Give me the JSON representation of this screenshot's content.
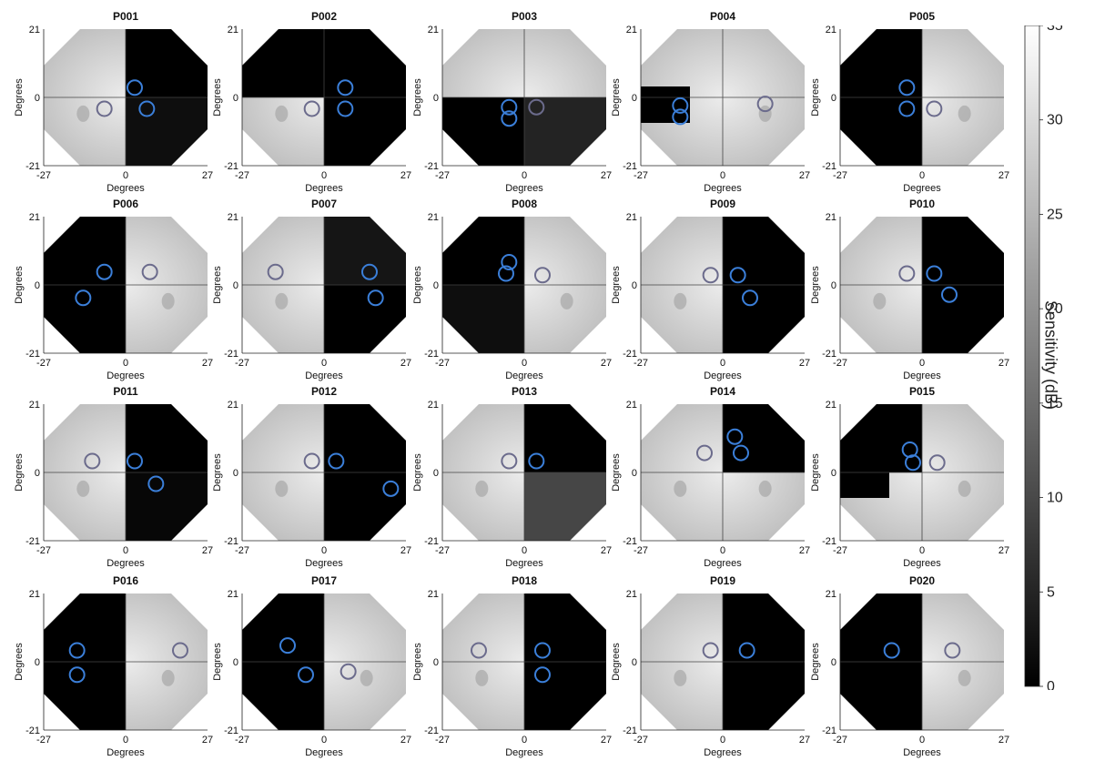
{
  "chart_data": {
    "type": "heatmap",
    "description_axes": {
      "xlabel": "Degrees",
      "ylabel": "Degrees",
      "xticks": [
        "-27",
        "0",
        "27"
      ],
      "yticks": [
        "21",
        "0",
        "-21"
      ],
      "xlim": [
        -27,
        27
      ],
      "ylim": [
        -21,
        21
      ]
    },
    "colorbar": {
      "label": "Sensitivity (dB)",
      "range": [
        0,
        35
      ],
      "ticks": [
        "0",
        "5",
        "10",
        "15",
        "20",
        "25",
        "30",
        "35"
      ],
      "colormap": "gray"
    },
    "panels": [
      {
        "title": "P001",
        "scotoma": [
          {
            "q": "UR",
            "v": 0
          },
          {
            "q": "LR",
            "v": 2
          }
        ],
        "pref": [
          3,
          -5
        ],
        "trl": [
          [
            3,
            3
          ],
          [
            7,
            -3.5
          ]
        ],
        "control": [
          [
            -7,
            -3.5
          ]
        ]
      },
      {
        "title": "P002",
        "scotoma": [
          {
            "q": "UL",
            "v": 0
          },
          {
            "q": "UR",
            "v": 0
          },
          {
            "q": "LR",
            "v": 0
          }
        ],
        "pref": [
          -1,
          -4
        ],
        "trl": [
          [
            7,
            3
          ],
          [
            7,
            -3.5
          ]
        ],
        "control": [
          [
            -4,
            -3.5
          ]
        ]
      },
      {
        "title": "P003",
        "scotoma": [
          {
            "q": "LL",
            "v": 0
          },
          {
            "q": "LR",
            "v": 5
          }
        ],
        "pref": [
          -2,
          -4
        ],
        "trl": [
          [
            -5,
            -3
          ],
          [
            -5,
            -6.5
          ]
        ],
        "control": [
          [
            4,
            -3
          ]
        ]
      },
      {
        "title": "P004",
        "scotoma": [
          {
            "q": "LL-part",
            "v": 0
          }
        ],
        "pref": [
          -16,
          -2
        ],
        "trl": [
          [
            -14,
            -2.5
          ],
          [
            -14,
            -6
          ]
        ],
        "control": [
          [
            14,
            -2
          ]
        ]
      },
      {
        "title": "P005",
        "scotoma": [
          {
            "q": "UL",
            "v": 0
          },
          {
            "q": "LL",
            "v": 0
          }
        ],
        "pref": [
          -4,
          -4
        ],
        "trl": [
          [
            -5,
            3
          ],
          [
            -5,
            -3.5
          ]
        ],
        "control": [
          [
            4,
            -3.5
          ]
        ]
      },
      {
        "title": "P006",
        "scotoma": [
          {
            "q": "UL",
            "v": 0
          },
          {
            "q": "LL",
            "v": 0
          }
        ],
        "pref": [
          0,
          -3
        ],
        "trl": [
          [
            -7,
            4
          ],
          [
            -14,
            -4
          ]
        ],
        "control": [
          [
            8,
            4
          ]
        ]
      },
      {
        "title": "P007",
        "scotoma": [
          {
            "q": "UR",
            "v": 3
          },
          {
            "q": "LR",
            "v": 0
          }
        ],
        "pref": [
          3,
          -3
        ],
        "trl": [
          [
            15,
            4
          ],
          [
            17,
            -4
          ]
        ],
        "control": [
          [
            -16,
            4
          ]
        ]
      },
      {
        "title": "P008",
        "scotoma": [
          {
            "q": "UL",
            "v": 0
          },
          {
            "q": "LL",
            "v": 2
          }
        ],
        "pref": [
          -2,
          -2
        ],
        "trl": [
          [
            -5,
            7
          ],
          [
            -6,
            3.5
          ]
        ],
        "control": [
          [
            6,
            3
          ]
        ]
      },
      {
        "title": "P009",
        "scotoma": [
          {
            "q": "UR",
            "v": 0
          },
          {
            "q": "LR",
            "v": 0
          }
        ],
        "pref": [
          1,
          -4
        ],
        "trl": [
          [
            5,
            3
          ],
          [
            9,
            -4
          ]
        ],
        "control": [
          [
            -4,
            3
          ]
        ]
      },
      {
        "title": "P010",
        "scotoma": [
          {
            "q": "UR",
            "v": 0
          },
          {
            "q": "LR",
            "v": 0
          }
        ],
        "pref": [
          0,
          -3
        ],
        "trl": [
          [
            4,
            3.5
          ],
          [
            9,
            -3
          ]
        ],
        "control": [
          [
            -5,
            3.5
          ]
        ]
      },
      {
        "title": "P011",
        "scotoma": [
          {
            "q": "UR",
            "v": 0
          },
          {
            "q": "LR",
            "v": 1
          }
        ],
        "pref": [
          3,
          -3
        ],
        "trl": [
          [
            3,
            3.5
          ],
          [
            10,
            -3.5
          ]
        ],
        "control": [
          [
            -11,
            3.5
          ]
        ]
      },
      {
        "title": "P012",
        "scotoma": [
          {
            "q": "UR",
            "v": 0
          },
          {
            "q": "LR",
            "v": 0
          }
        ],
        "pref": [
          2,
          -3
        ],
        "trl": [
          [
            4,
            3.5
          ],
          [
            22,
            -5
          ]
        ],
        "control": [
          [
            -4,
            3.5
          ]
        ]
      },
      {
        "title": "P013",
        "scotoma": [
          {
            "q": "UR",
            "v": 0
          },
          {
            "q": "LR",
            "v": 10
          }
        ],
        "pref": [
          2,
          -3
        ],
        "trl": [
          [
            4,
            3.5
          ]
        ],
        "control": [
          [
            -5,
            3.5
          ]
        ]
      },
      {
        "title": "P014",
        "scotoma": [
          {
            "q": "UR",
            "v": 0
          }
        ],
        "pref": [
          2,
          0
        ],
        "trl": [
          [
            4,
            11
          ],
          [
            6,
            6
          ]
        ],
        "control": [
          [
            -6,
            6
          ]
        ]
      },
      {
        "title": "P015",
        "scotoma": [
          {
            "q": "UL",
            "v": 0
          },
          {
            "q": "LL-part",
            "v": 0
          }
        ],
        "pref": [
          -2,
          -2
        ],
        "trl": [
          [
            -4,
            7
          ],
          [
            -3,
            3
          ]
        ],
        "control": [
          [
            5,
            3
          ]
        ]
      },
      {
        "title": "P016",
        "scotoma": [
          {
            "q": "UL",
            "v": 0
          },
          {
            "q": "LL",
            "v": 0
          }
        ],
        "pref": [
          -3,
          -3
        ],
        "trl": [
          [
            -16,
            3.5
          ],
          [
            -16,
            -4
          ]
        ],
        "control": [
          [
            18,
            3.5
          ]
        ]
      },
      {
        "title": "P017",
        "scotoma": [
          {
            "q": "UL",
            "v": 0
          },
          {
            "q": "LL",
            "v": 0
          }
        ],
        "pref": [
          -1,
          -3
        ],
        "trl": [
          [
            -12,
            5
          ],
          [
            -6,
            -4
          ]
        ],
        "control": [
          [
            8,
            -3
          ]
        ]
      },
      {
        "title": "P018",
        "scotoma": [
          {
            "q": "UR",
            "v": 0
          },
          {
            "q": "LR",
            "v": 0
          }
        ],
        "pref": [
          2,
          -3
        ],
        "trl": [
          [
            6,
            3.5
          ],
          [
            6,
            -4
          ]
        ],
        "control": [
          [
            -15,
            3.5
          ]
        ]
      },
      {
        "title": "P019",
        "scotoma": [
          {
            "q": "UR",
            "v": 0
          },
          {
            "q": "LR",
            "v": 0
          }
        ],
        "pref": [
          2,
          -3
        ],
        "trl": [
          [
            8,
            3.5
          ]
        ],
        "control": [
          [
            -4,
            3.5
          ]
        ]
      },
      {
        "title": "P020",
        "scotoma": [
          {
            "q": "UL",
            "v": 0
          },
          {
            "q": "LL",
            "v": 0
          }
        ],
        "pref": [
          0,
          -3
        ],
        "trl": [
          [
            -10,
            3.5
          ]
        ],
        "control": [
          [
            10,
            3.5
          ]
        ]
      }
    ]
  },
  "colors": {
    "trl_circle": "#3b7fd9",
    "control_circle": "#6b6b8c",
    "field_light": "#d9d9d9",
    "field_dark": "#050505"
  }
}
